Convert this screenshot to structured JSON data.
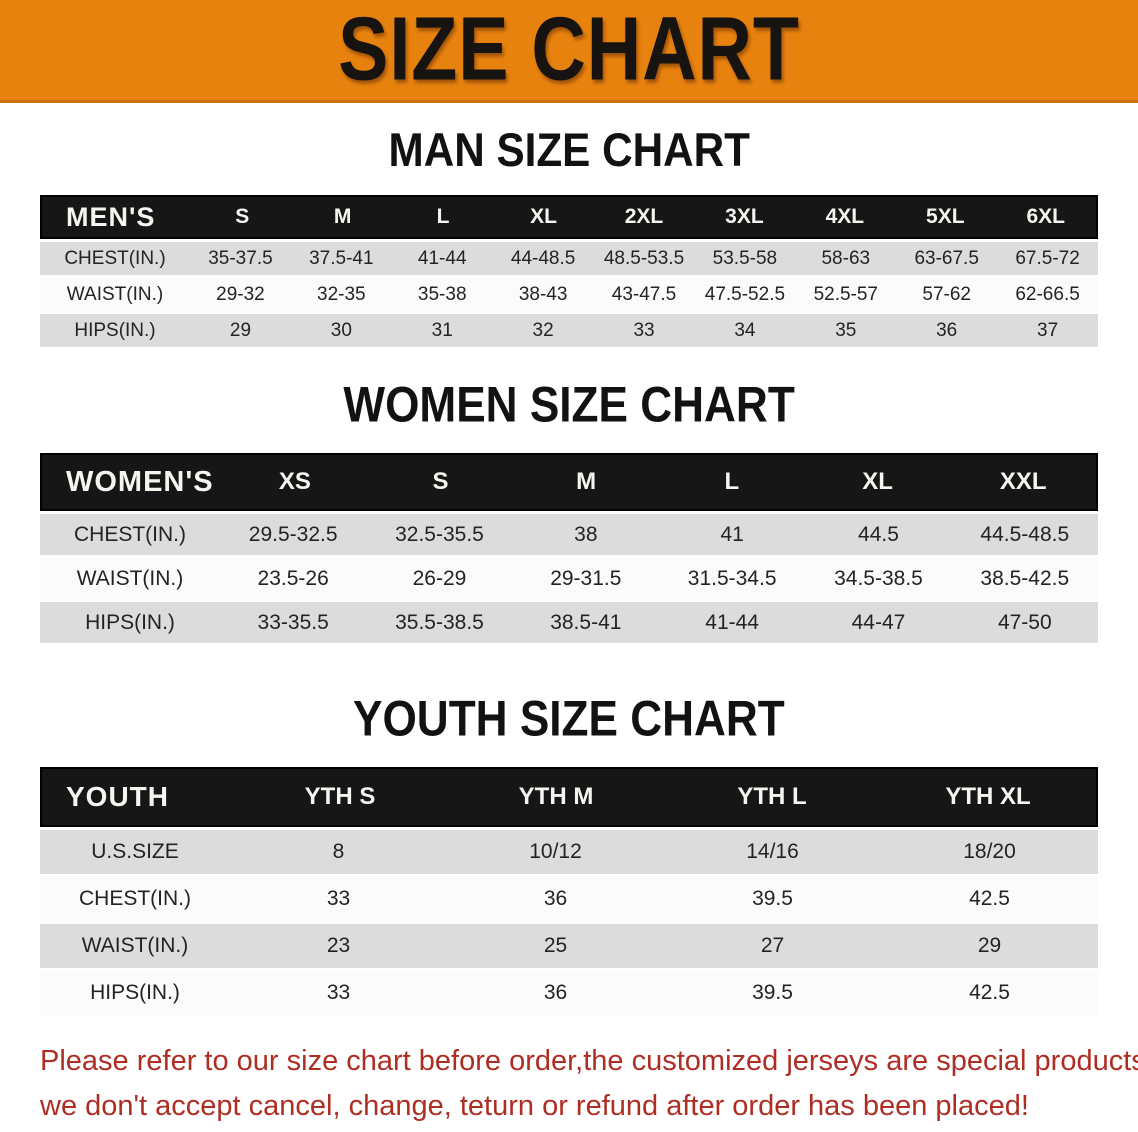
{
  "banner": {
    "title": "SIZE CHART"
  },
  "colors": {
    "banner_bg": "#E7820F",
    "header_bar_bg": "#161616",
    "row_gray": "#DCDCDC",
    "row_white": "#FBFBFB",
    "disclaimer_text": "#AE2E24"
  },
  "sections": [
    {
      "heading": "MAN SIZE CHART",
      "table": {
        "header_label": "MEN'S",
        "columns": [
          "S",
          "M",
          "L",
          "XL",
          "2XL",
          "3XL",
          "4XL",
          "5XL",
          "6XL"
        ],
        "rows": [
          {
            "label": "CHEST(IN.)",
            "values": [
              "35-37.5",
              "37.5-41",
              "41-44",
              "44-48.5",
              "48.5-53.5",
              "53.5-58",
              "58-63",
              "63-67.5",
              "67.5-72"
            ]
          },
          {
            "label": "WAIST(IN.)",
            "values": [
              "29-32",
              "32-35",
              "35-38",
              "38-43",
              "43-47.5",
              "47.5-52.5",
              "52.5-57",
              "57-62",
              "62-66.5"
            ]
          },
          {
            "label": "HIPS(IN.)",
            "values": [
              "29",
              "30",
              "31",
              "32",
              "33",
              "34",
              "35",
              "36",
              "37"
            ]
          }
        ]
      }
    },
    {
      "heading": "WOMEN SIZE CHART",
      "table": {
        "header_label": "WOMEN'S",
        "columns": [
          "XS",
          "S",
          "M",
          "L",
          "XL",
          "XXL"
        ],
        "rows": [
          {
            "label": "CHEST(IN.)",
            "values": [
              "29.5-32.5",
              "32.5-35.5",
              "38",
              "41",
              "44.5",
              "44.5-48.5"
            ]
          },
          {
            "label": "WAIST(IN.)",
            "values": [
              "23.5-26",
              "26-29",
              "29-31.5",
              "31.5-34.5",
              "34.5-38.5",
              "38.5-42.5"
            ]
          },
          {
            "label": "HIPS(IN.)",
            "values": [
              "33-35.5",
              "35.5-38.5",
              "38.5-41",
              "41-44",
              "44-47",
              "47-50"
            ]
          }
        ]
      }
    },
    {
      "heading": "YOUTH SIZE CHART",
      "table": {
        "header_label": "YOUTH",
        "columns": [
          "YTH S",
          "YTH M",
          "YTH L",
          "YTH XL"
        ],
        "rows": [
          {
            "label": "U.S.SIZE",
            "values": [
              "8",
              "10/12",
              "14/16",
              "18/20"
            ]
          },
          {
            "label": "CHEST(IN.)",
            "values": [
              "33",
              "36",
              "39.5",
              "42.5"
            ]
          },
          {
            "label": "WAIST(IN.)",
            "values": [
              "23",
              "25",
              "27",
              "29"
            ]
          },
          {
            "label": "HIPS(IN.)",
            "values": [
              "33",
              "36",
              "39.5",
              "42.5"
            ]
          }
        ]
      }
    }
  ],
  "disclaimer": {
    "line1": "Please refer to our size chart before order,the customized jerseys are special products,",
    "line2": "we don't accept cancel, change, teturn or refund after order has been placed!"
  }
}
